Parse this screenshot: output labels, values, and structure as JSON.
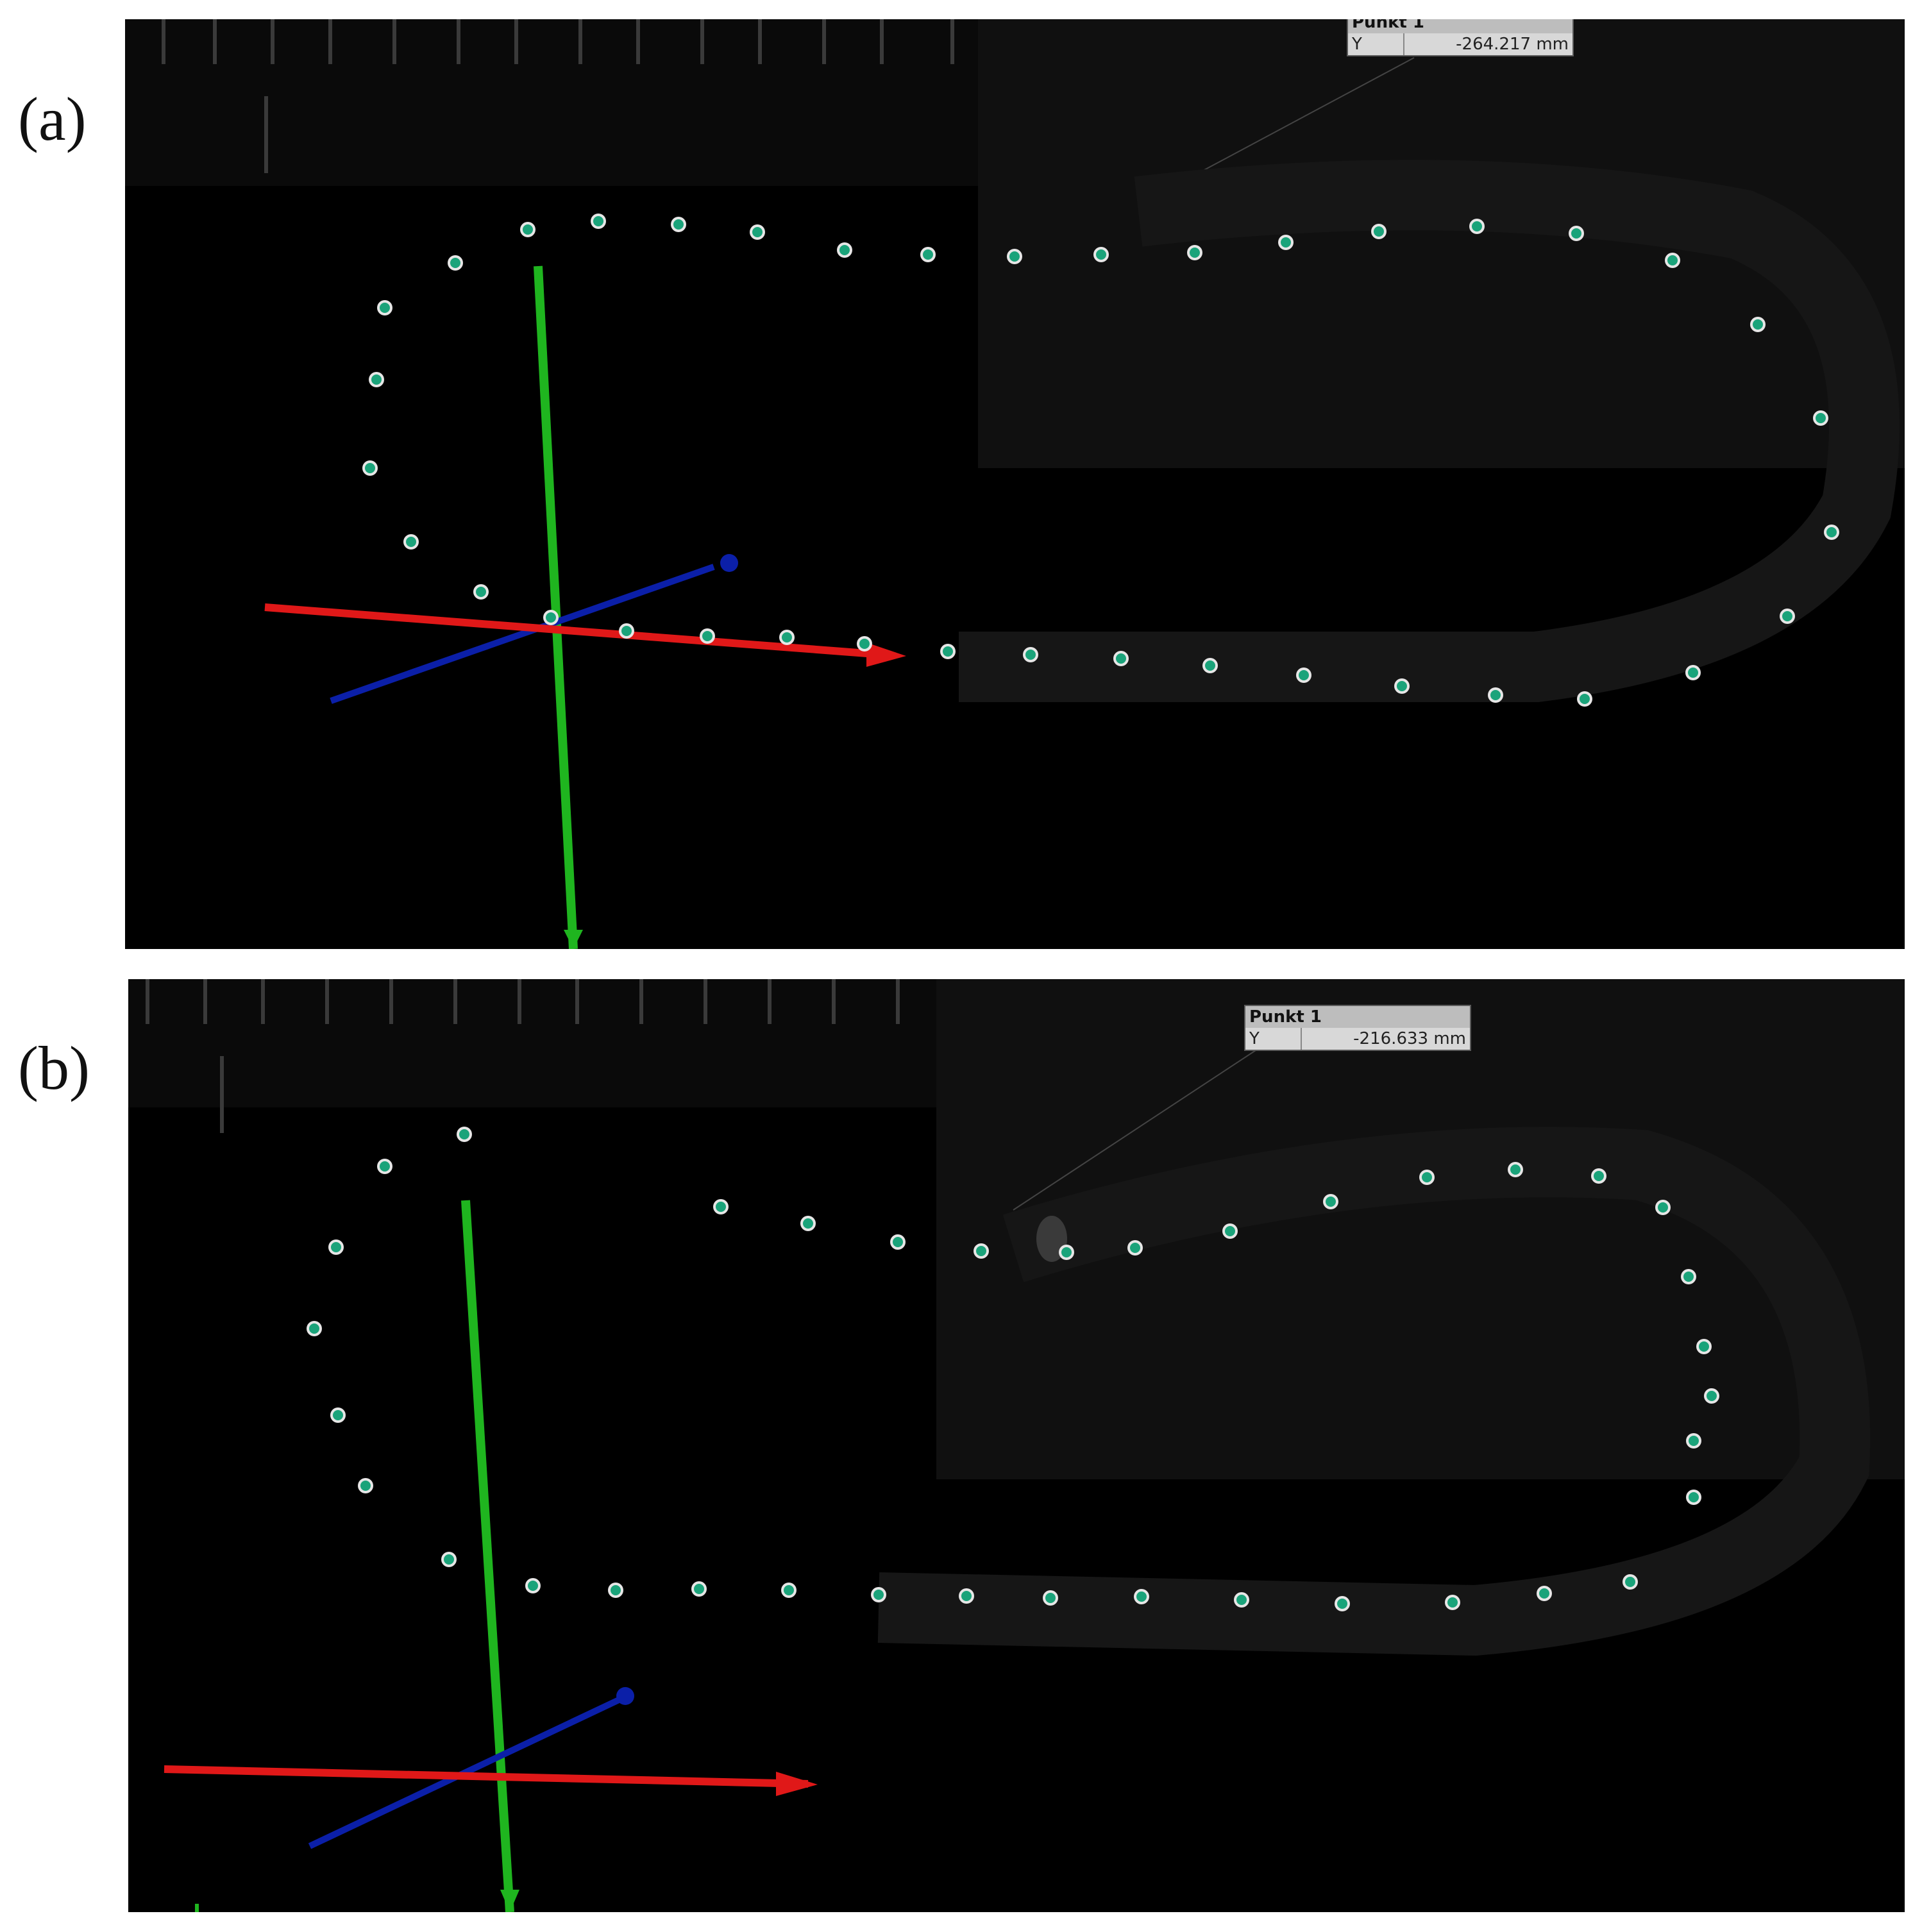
{
  "panels": [
    {
      "label": "(a)",
      "measurement": {
        "title": "Punkt 1",
        "axis": "Y",
        "value": "-264.217 mm"
      }
    },
    {
      "label": "(b)",
      "measurement": {
        "title": "Punkt 1",
        "axis": "Y",
        "value": "-216.633 mm"
      }
    }
  ],
  "colors": {
    "x_axis": "#e01818",
    "y_axis": "#1fb51f",
    "z_axis": "#0b1fa8",
    "marker_fill": "#1aa37a",
    "marker_ring": "#e6e6e6",
    "background": "#000000"
  }
}
